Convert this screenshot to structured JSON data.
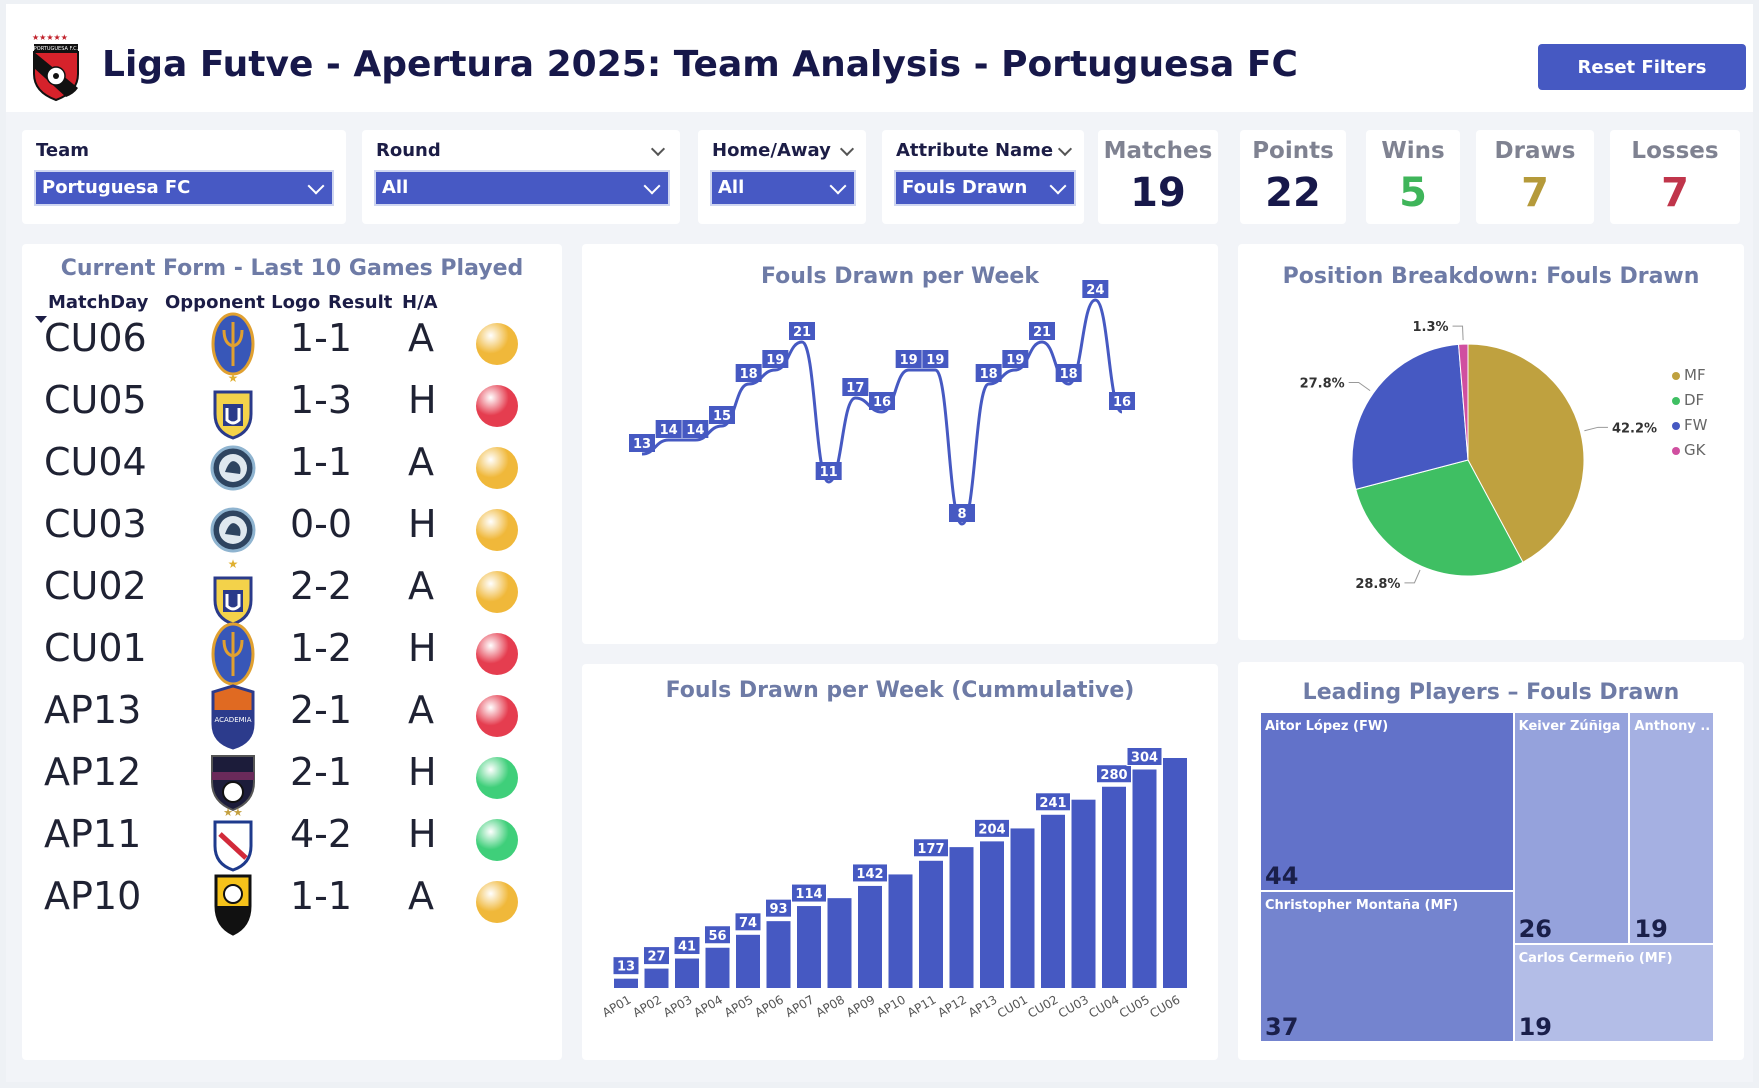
{
  "header": {
    "title": "Liga Futve - Apertura 2025: Team Analysis - Portuguesa FC",
    "reset_label": "Reset Filters",
    "logo_text": "PORTUGUESA F.C."
  },
  "filters": {
    "team": {
      "label": "Team",
      "value": "Portuguesa FC"
    },
    "round": {
      "label": "Round",
      "value": "All"
    },
    "home_away": {
      "label": "Home/Away",
      "value": "All"
    },
    "attribute": {
      "label": "Attribute Name",
      "value": "Fouls Drawn"
    }
  },
  "kpis": [
    {
      "label": "Matches",
      "value": "19",
      "color": "#17184a"
    },
    {
      "label": "Points",
      "value": "22",
      "color": "#17184a"
    },
    {
      "label": "Wins",
      "value": "5",
      "color": "#3fb55a"
    },
    {
      "label": "Draws",
      "value": "7",
      "color": "#b59a3a"
    },
    {
      "label": "Losses",
      "value": "7",
      "color": "#c0354b"
    }
  ],
  "form": {
    "title": "Current Form - Last 10 Games Played",
    "columns": {
      "matchday": "MatchDay",
      "logo": "Opponent Logo",
      "result": "Result",
      "ha": "H/A"
    },
    "rows": [
      {
        "matchday": "CU06",
        "result": "1-1",
        "ha": "A",
        "outcome": "draw",
        "logo": "trident-crest"
      },
      {
        "matchday": "CU05",
        "result": "1-3",
        "ha": "H",
        "outcome": "loss",
        "logo": "star-crest"
      },
      {
        "matchday": "CU04",
        "result": "1-1",
        "ha": "A",
        "outcome": "draw",
        "logo": "round-crest"
      },
      {
        "matchday": "CU03",
        "result": "0-0",
        "ha": "H",
        "outcome": "draw",
        "logo": "round-crest"
      },
      {
        "matchday": "CU02",
        "result": "2-2",
        "ha": "A",
        "outcome": "draw",
        "logo": "star-crest"
      },
      {
        "matchday": "CU01",
        "result": "1-2",
        "ha": "H",
        "outcome": "loss",
        "logo": "trident-crest"
      },
      {
        "matchday": "AP13",
        "result": "2-1",
        "ha": "A",
        "outcome": "loss",
        "logo": "academia-crest"
      },
      {
        "matchday": "AP12",
        "result": "2-1",
        "ha": "H",
        "outcome": "win",
        "logo": "metropolitanos-crest"
      },
      {
        "matchday": "AP11",
        "result": "4-2",
        "ha": "H",
        "outcome": "win",
        "logo": "two-star-crest"
      },
      {
        "matchday": "AP10",
        "result": "1-1",
        "ha": "A",
        "outcome": "draw",
        "logo": "ball-crest"
      }
    ],
    "outcome_colors": {
      "win": "#3fcf7a",
      "draw": "#f0b83a",
      "loss": "#e53d4f"
    }
  },
  "chart_data": [
    {
      "type": "line",
      "title": "Fouls Drawn per Week",
      "categories": [
        "AP01",
        "AP02",
        "AP03",
        "AP04",
        "AP05",
        "AP06",
        "AP07",
        "AP08",
        "AP09",
        "AP10",
        "AP11",
        "AP12",
        "AP13",
        "CU01",
        "CU02",
        "CU03",
        "CU04",
        "CU05",
        "CU06"
      ],
      "values": [
        13,
        14,
        14,
        15,
        18,
        19,
        21,
        11,
        17,
        16,
        19,
        19,
        8,
        18,
        19,
        21,
        18,
        24,
        16
      ],
      "color": "#4659c2"
    },
    {
      "type": "bar",
      "title": "Fouls Drawn per Week (Cummulative)",
      "categories": [
        "AP01",
        "AP02",
        "AP03",
        "AP04",
        "AP05",
        "AP06",
        "AP07",
        "AP08",
        "AP09",
        "AP10",
        "AP11",
        "AP12",
        "AP13",
        "CU01",
        "CU02",
        "CU03",
        "CU04",
        "CU05",
        "CU06"
      ],
      "values": [
        13,
        27,
        41,
        56,
        74,
        93,
        114,
        125,
        142,
        158,
        177,
        196,
        204,
        222,
        241,
        262,
        280,
        304,
        320
      ],
      "labels_shown": [
        true,
        true,
        true,
        true,
        true,
        true,
        true,
        false,
        true,
        false,
        true,
        false,
        true,
        false,
        true,
        false,
        true,
        true,
        false
      ],
      "color": "#4659c2"
    },
    {
      "type": "pie",
      "title": "Position Breakdown: Fouls Drawn",
      "slices": [
        {
          "name": "MF",
          "value": 42.2,
          "label": "42.2%",
          "color": "#bfa13f"
        },
        {
          "name": "DF",
          "value": 28.8,
          "label": "28.8%",
          "color": "#3fbf63"
        },
        {
          "name": "FW",
          "value": 27.8,
          "label": "27.8%",
          "color": "#4659c2"
        },
        {
          "name": "GK",
          "value": 1.3,
          "label": "1.3%",
          "color": "#d04fa0"
        }
      ]
    },
    {
      "type": "treemap",
      "title": "Leading Players – Fouls Drawn",
      "items": [
        {
          "name": "Aitor López (FW)",
          "value": 44
        },
        {
          "name": "Christopher Montaña (MF)",
          "value": 37
        },
        {
          "name": "Keiver Zúñiga ...",
          "value": 26
        },
        {
          "name": "Anthony ...",
          "value": 19
        },
        {
          "name": "Carlos Cermeño (MF)",
          "value": 19
        }
      ]
    }
  ]
}
